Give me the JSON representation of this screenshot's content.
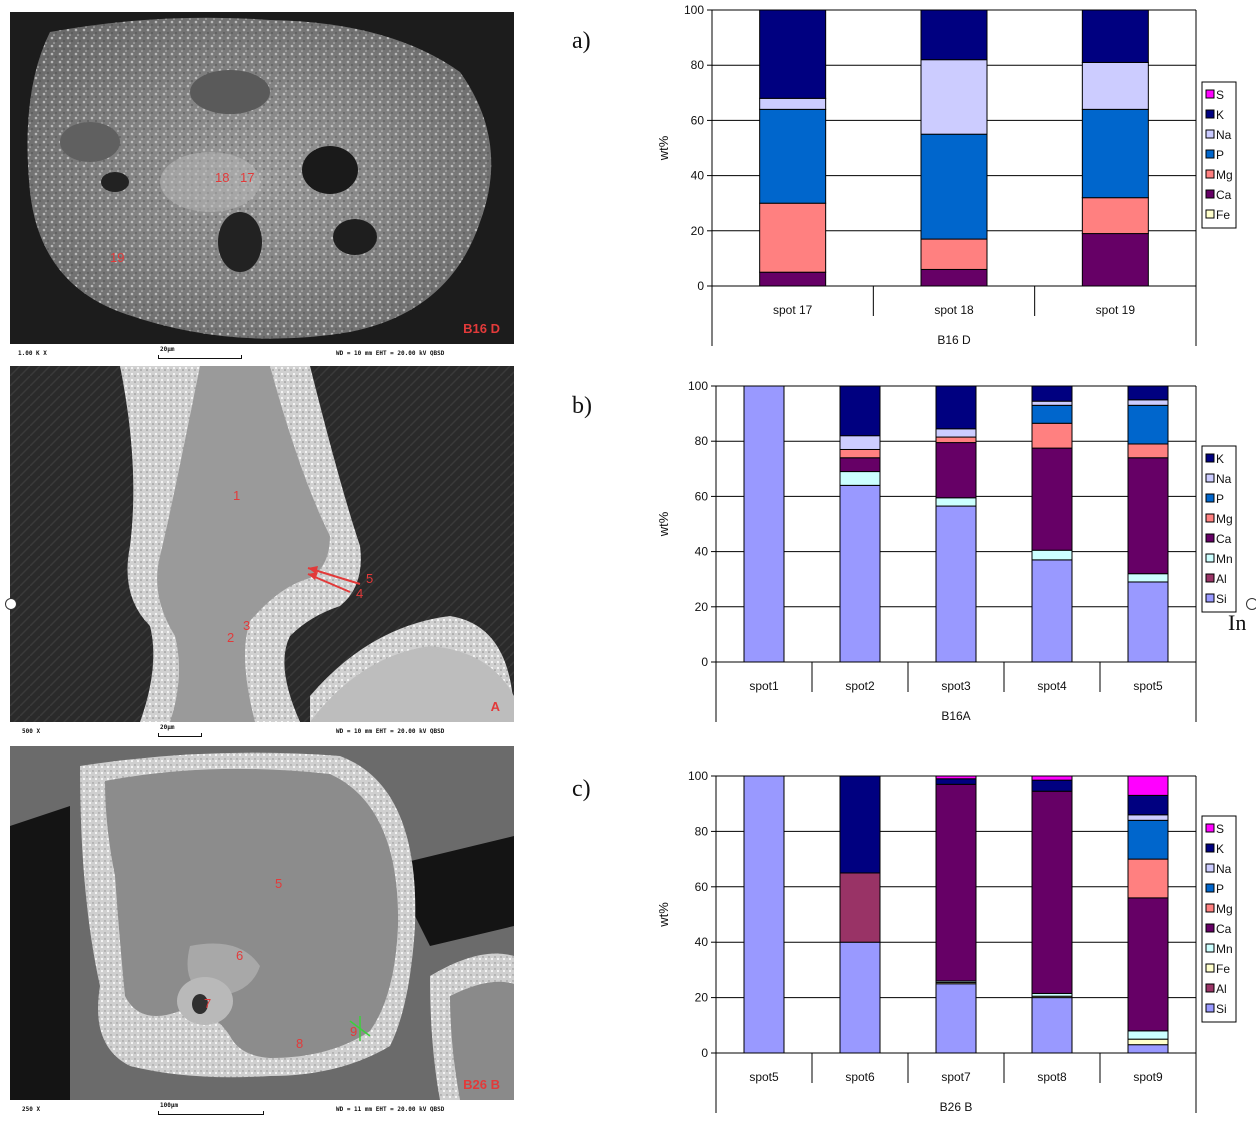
{
  "colors": {
    "S": "#ff00ff",
    "K": "#000080",
    "Na": "#ccccff",
    "P": "#0066cc",
    "Mg": "#ff8080",
    "Ca": "#660066",
    "Fe": "#ffffcc",
    "Mn": "#ccffff",
    "Al": "#993366",
    "Si": "#9999ff"
  },
  "images": [
    {
      "tag": "B16 D",
      "magnification": "1.00 K X",
      "scale_label": "20µm",
      "settings": "WD = 10 mm   EHT = 20.00 kV   QBSD",
      "spots": [
        "18",
        "17",
        "19"
      ]
    },
    {
      "tag": "A",
      "magnification": "500 X",
      "scale_label": "20µm",
      "settings": "WD = 10 mm   EHT = 20.00 kV   QBSD",
      "spots": [
        "1",
        "5",
        "4",
        "2",
        "3"
      ]
    },
    {
      "tag": "B26 B",
      "magnification": "250 X",
      "scale_label": "100µm",
      "settings": "WD = 11 mm   EHT = 20.00 kV   QBSD",
      "spots": [
        "5",
        "6",
        "7",
        "8",
        "9"
      ]
    }
  ],
  "panel_letters": [
    "a)",
    "b)",
    "c)"
  ],
  "stray_text": "In",
  "chart_data": [
    {
      "type": "bar",
      "stacked": true,
      "group_label": "B16 D",
      "ylabel": "wt%",
      "ylim": [
        0,
        100
      ],
      "yticks": [
        "0",
        "20",
        "40",
        "60",
        "80",
        "100"
      ],
      "grid": true,
      "legend_position": "right",
      "legend": [
        "S",
        "K",
        "Na",
        "P",
        "Mg",
        "Ca",
        "Fe"
      ],
      "categories": [
        "spot 17",
        "spot 18",
        "spot 19"
      ],
      "series": [
        {
          "name": "Fe",
          "values": [
            0,
            0,
            0
          ]
        },
        {
          "name": "Ca",
          "values": [
            5,
            6,
            19
          ]
        },
        {
          "name": "Mg",
          "values": [
            25,
            11,
            13
          ]
        },
        {
          "name": "P",
          "values": [
            34,
            38,
            32
          ]
        },
        {
          "name": "Na",
          "values": [
            4,
            27,
            17
          ]
        },
        {
          "name": "K",
          "values": [
            32,
            18,
            19
          ]
        },
        {
          "name": "S",
          "values": [
            0,
            0,
            0
          ]
        }
      ]
    },
    {
      "type": "bar",
      "stacked": true,
      "group_label": "B16A",
      "ylabel": "wt%",
      "ylim": [
        0,
        100
      ],
      "yticks": [
        "0",
        "20",
        "40",
        "60",
        "80",
        "100"
      ],
      "grid": true,
      "legend_position": "right",
      "legend": [
        "K",
        "Na",
        "P",
        "Mg",
        "Ca",
        "Mn",
        "Al",
        "Si"
      ],
      "categories": [
        "spot1",
        "spot2",
        "spot3",
        "spot4",
        "spot5"
      ],
      "series": [
        {
          "name": "Si",
          "values": [
            100,
            64,
            56.5,
            37,
            29
          ]
        },
        {
          "name": "Al",
          "values": [
            0,
            0,
            0,
            0,
            0
          ]
        },
        {
          "name": "Mn",
          "values": [
            0,
            5,
            3,
            3.5,
            3
          ]
        },
        {
          "name": "Ca",
          "values": [
            0,
            5,
            20,
            37,
            42
          ]
        },
        {
          "name": "Mg",
          "values": [
            0,
            3,
            2,
            9,
            5
          ]
        },
        {
          "name": "P",
          "values": [
            0,
            0,
            0,
            6.5,
            14
          ]
        },
        {
          "name": "Na",
          "values": [
            0,
            5,
            3,
            1.5,
            2
          ]
        },
        {
          "name": "K",
          "values": [
            0,
            18,
            15.5,
            5.5,
            5
          ]
        }
      ]
    },
    {
      "type": "bar",
      "stacked": true,
      "group_label": "B26 B",
      "ylabel": "wt%",
      "ylim": [
        0,
        100
      ],
      "yticks": [
        "0",
        "20",
        "40",
        "60",
        "80",
        "100"
      ],
      "grid": true,
      "legend_position": "right",
      "legend": [
        "S",
        "K",
        "Na",
        "P",
        "Mg",
        "Ca",
        "Mn",
        "Fe",
        "Al",
        "Si"
      ],
      "categories": [
        "spot5",
        "spot6",
        "spot7",
        "spot8",
        "spot9"
      ],
      "series": [
        {
          "name": "Si",
          "values": [
            100,
            40,
            25,
            20,
            3
          ]
        },
        {
          "name": "Al",
          "values": [
            0,
            25,
            0,
            0,
            0
          ]
        },
        {
          "name": "Fe",
          "values": [
            0,
            0,
            0.5,
            0.5,
            2
          ]
        },
        {
          "name": "Mn",
          "values": [
            0,
            0,
            0.5,
            1,
            3
          ]
        },
        {
          "name": "Ca",
          "values": [
            0,
            0,
            71,
            73,
            48
          ]
        },
        {
          "name": "Mg",
          "values": [
            0,
            0,
            0,
            0,
            14
          ]
        },
        {
          "name": "P",
          "values": [
            0,
            0,
            0,
            0,
            14
          ]
        },
        {
          "name": "Na",
          "values": [
            0,
            0,
            0,
            0,
            2
          ]
        },
        {
          "name": "K",
          "values": [
            0,
            35,
            2,
            4,
            7
          ]
        },
        {
          "name": "S",
          "values": [
            0,
            0,
            1,
            1.5,
            7
          ]
        }
      ]
    }
  ]
}
